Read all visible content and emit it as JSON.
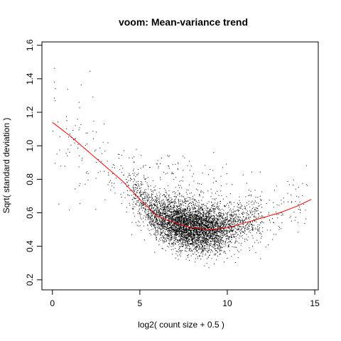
{
  "chart_data": {
    "type": "scatter",
    "title": "voom: Mean-variance trend",
    "xlabel": "log2( count size + 0.5 )",
    "ylabel": "Sqrt( standard deviation )",
    "xlim": [
      -0.6,
      15.2
    ],
    "ylim": [
      0.14,
      1.62
    ],
    "x_ticks": [
      0,
      5,
      10,
      15
    ],
    "x_tick_labels": [
      "0",
      "5",
      "10",
      "15"
    ],
    "y_ticks": [
      0.2,
      0.4,
      0.6,
      0.8,
      1.0,
      1.2,
      1.4,
      1.6
    ],
    "y_tick_labels": [
      "0.2",
      "0.4",
      "0.6",
      "0.8",
      "1.0",
      "1.2",
      "1.4",
      "1.6"
    ],
    "grid": false,
    "legend": "none",
    "points_description": "approximately 6000 genes; dense cluster centered near x=8, y=0.5, sparse high-variance points at low counts",
    "point_color": "#000000",
    "trend_color": "#ff0000",
    "trend": {
      "name": "",
      "x": [
        0.0,
        1.0,
        2.0,
        3.0,
        4.0,
        5.0,
        6.0,
        7.0,
        8.0,
        9.0,
        10.0,
        11.0,
        12.0,
        13.0,
        14.0,
        14.8
      ],
      "y": [
        1.14,
        1.06,
        0.97,
        0.88,
        0.79,
        0.68,
        0.58,
        0.54,
        0.51,
        0.5,
        0.51,
        0.54,
        0.57,
        0.6,
        0.64,
        0.68
      ]
    }
  }
}
